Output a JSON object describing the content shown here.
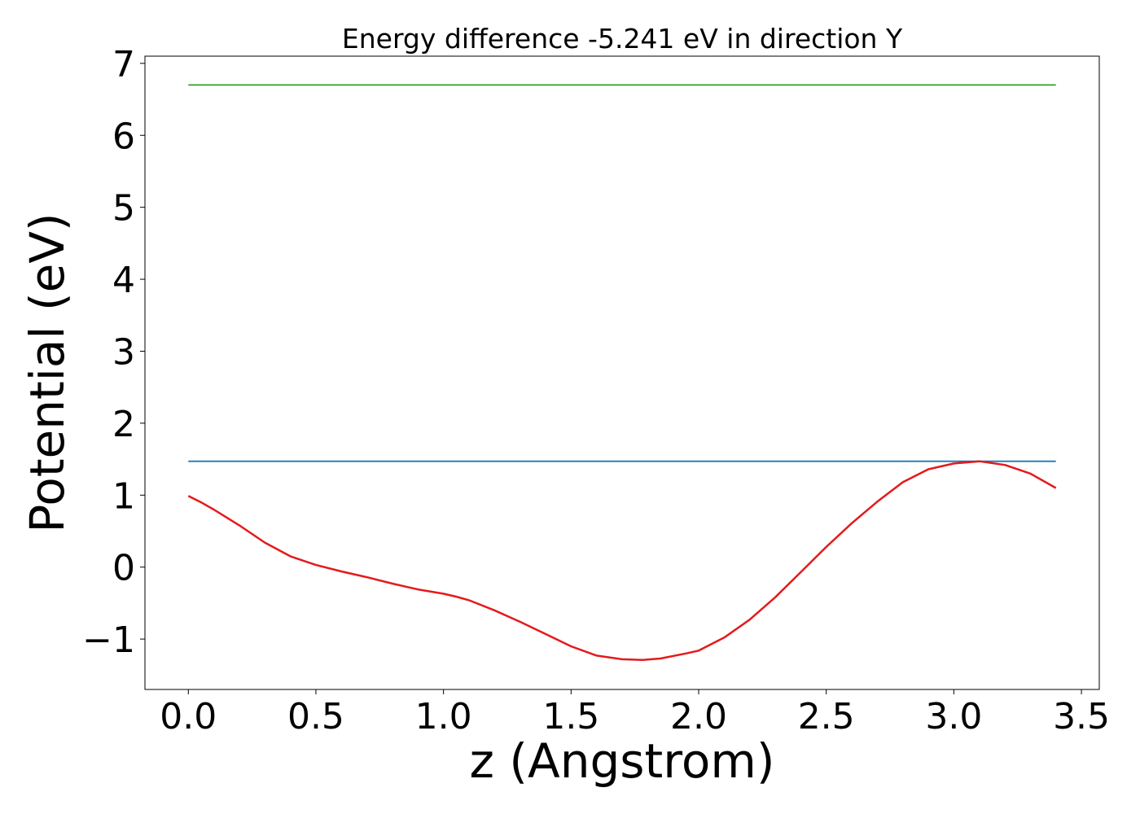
{
  "chart_data": {
    "type": "line",
    "title": "Energy difference -5.241 eV in direction Y",
    "xlabel": "z (Angstrom)",
    "ylabel": "Potential (eV)",
    "xlim": [
      -0.17,
      3.57
    ],
    "ylim": [
      -1.7,
      7.1
    ],
    "grid": false,
    "x_ticks": [
      0.0,
      0.5,
      1.0,
      1.5,
      2.0,
      2.5,
      3.0,
      3.5
    ],
    "x_tick_labels": [
      "0.0",
      "0.5",
      "1.0",
      "1.5",
      "2.0",
      "2.5",
      "3.0",
      "3.5"
    ],
    "y_ticks": [
      -1,
      0,
      1,
      2,
      3,
      4,
      5,
      6,
      7
    ],
    "y_tick_labels": [
      "−1",
      "0",
      "1",
      "2",
      "3",
      "4",
      "5",
      "6",
      "7"
    ],
    "series": [
      {
        "color": "#2ca02c",
        "x": [
          0.0,
          3.4
        ],
        "y": [
          6.7,
          6.7
        ]
      },
      {
        "color": "#1f77b4",
        "x": [
          0.0,
          3.4
        ],
        "y": [
          1.47,
          1.47
        ]
      },
      {
        "color": "#e41a1c",
        "x": [
          0.0,
          0.05,
          0.1,
          0.2,
          0.3,
          0.4,
          0.5,
          0.6,
          0.7,
          0.8,
          0.9,
          1.0,
          1.05,
          1.1,
          1.2,
          1.3,
          1.4,
          1.5,
          1.6,
          1.7,
          1.78,
          1.85,
          1.95,
          2.0,
          2.1,
          2.2,
          2.3,
          2.4,
          2.5,
          2.6,
          2.7,
          2.8,
          2.9,
          3.0,
          3.1,
          3.2,
          3.3,
          3.4
        ],
        "y": [
          0.99,
          0.9,
          0.8,
          0.58,
          0.34,
          0.15,
          0.03,
          -0.06,
          -0.14,
          -0.23,
          -0.31,
          -0.37,
          -0.41,
          -0.46,
          -0.6,
          -0.76,
          -0.93,
          -1.1,
          -1.23,
          -1.28,
          -1.29,
          -1.27,
          -1.2,
          -1.16,
          -0.98,
          -0.73,
          -0.42,
          -0.07,
          0.28,
          0.61,
          0.91,
          1.18,
          1.36,
          1.44,
          1.47,
          1.42,
          1.3,
          1.1
        ]
      }
    ]
  }
}
